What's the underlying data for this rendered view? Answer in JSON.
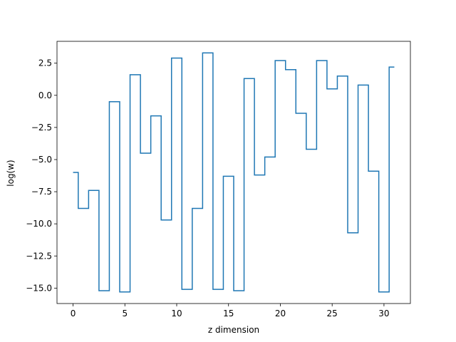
{
  "chart_data": {
    "type": "line",
    "drawstyle": "steps-mid",
    "title": "",
    "xlabel": "z dimension",
    "ylabel": "log(w)",
    "xlim": [
      -1.55,
      32.55
    ],
    "ylim": [
      -16.2,
      4.2
    ],
    "xticks": [
      0,
      5,
      10,
      15,
      20,
      25,
      30
    ],
    "yticks": [
      2.5,
      0.0,
      -2.5,
      -5.0,
      -7.5,
      -10.0,
      -12.5,
      -15.0
    ],
    "ytick_labels": [
      "2.5",
      "0.0",
      "−2.5",
      "−5.0",
      "−7.5",
      "−10.0",
      "−12.5",
      "−15.0"
    ],
    "grid": false,
    "series": [
      {
        "color": "#1f77b4",
        "x": [
          0,
          1,
          2,
          3,
          4,
          5,
          6,
          7,
          8,
          9,
          10,
          11,
          12,
          13,
          14,
          15,
          16,
          17,
          18,
          19,
          20,
          21,
          22,
          23,
          24,
          25,
          26,
          27,
          28,
          29,
          30,
          31
        ],
        "y": [
          -6.0,
          -8.8,
          -7.4,
          -15.2,
          -0.5,
          -15.3,
          1.6,
          -4.5,
          -1.6,
          -9.7,
          2.9,
          -15.1,
          -8.8,
          3.3,
          -15.1,
          -6.3,
          -15.2,
          1.3,
          -6.2,
          -4.8,
          2.7,
          2.0,
          -1.4,
          -4.2,
          2.7,
          0.5,
          1.5,
          -10.7,
          0.8,
          -5.9,
          -15.3,
          2.2
        ]
      }
    ]
  }
}
